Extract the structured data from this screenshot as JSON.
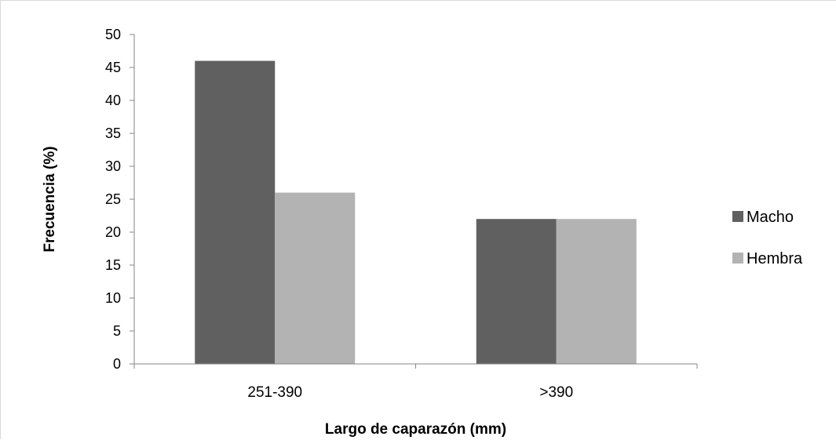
{
  "chart_data": {
    "type": "bar",
    "title": "",
    "xlabel": "Largo de caparazón (mm)",
    "ylabel": "Frecuencia (%)",
    "categories": [
      "251-390",
      ">390"
    ],
    "series": [
      {
        "name": "Macho",
        "values": [
          46,
          22
        ],
        "color": "#606060"
      },
      {
        "name": "Hembra",
        "values": [
          26,
          22
        ],
        "color": "#b3b3b3"
      }
    ],
    "ylim": [
      0,
      50
    ],
    "yticks": [
      0,
      5,
      10,
      15,
      20,
      25,
      30,
      35,
      40,
      45,
      50
    ],
    "grid": false,
    "legend_position": "right"
  }
}
